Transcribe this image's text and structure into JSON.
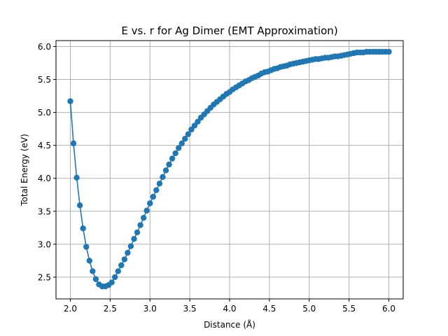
{
  "chart_data": {
    "type": "line",
    "title": "E vs. r for Ag Dimer (EMT Approximation)",
    "xlabel": "Distance (Å)",
    "ylabel": "Total Energy (eV)",
    "xlim": [
      1.82,
      6.18
    ],
    "ylim": [
      2.17,
      6.09
    ],
    "xticks": [
      "2.0",
      "2.5",
      "3.0",
      "3.5",
      "4.0",
      "4.5",
      "5.0",
      "5.5",
      "6.0"
    ],
    "yticks": [
      "2.5",
      "3.0",
      "3.5",
      "4.0",
      "4.5",
      "5.0",
      "5.5",
      "6.0"
    ],
    "grid": true,
    "color": "#1f77b4",
    "marker": "circle",
    "series": [
      {
        "x": [
          2.0,
          2.04,
          2.08,
          2.12,
          2.16,
          2.2,
          2.24,
          2.28,
          2.32,
          2.36,
          2.4,
          2.44,
          2.48,
          2.52,
          2.56,
          2.6,
          2.64,
          2.68,
          2.72,
          2.76,
          2.8,
          2.84,
          2.88,
          2.92,
          2.96,
          3.0,
          3.04,
          3.08,
          3.12,
          3.16,
          3.2,
          3.24,
          3.28,
          3.32,
          3.36,
          3.4,
          3.44,
          3.48,
          3.52,
          3.56,
          3.6,
          3.64,
          3.68,
          3.72,
          3.76,
          3.8,
          3.84,
          3.88,
          3.92,
          3.96,
          4.0,
          4.04,
          4.08,
          4.12,
          4.16,
          4.2,
          4.24,
          4.28,
          4.32,
          4.36,
          4.4,
          4.44,
          4.48,
          4.52,
          4.56,
          4.6,
          4.64,
          4.68,
          4.72,
          4.76,
          4.8,
          4.84,
          4.88,
          4.92,
          4.96,
          5.0,
          5.04,
          5.08,
          5.12,
          5.16,
          5.2,
          5.24,
          5.28,
          5.32,
          5.36,
          5.4,
          5.44,
          5.48,
          5.52,
          5.56,
          5.6,
          5.64,
          5.68,
          5.72,
          5.76,
          5.8,
          5.84,
          5.88,
          5.92,
          5.96,
          6.0
        ],
        "values": [
          5.17,
          4.53,
          4.01,
          3.59,
          3.24,
          2.96,
          2.75,
          2.59,
          2.47,
          2.39,
          2.36,
          2.36,
          2.38,
          2.42,
          2.5,
          2.59,
          2.68,
          2.77,
          2.87,
          2.97,
          3.08,
          3.18,
          3.29,
          3.4,
          3.51,
          3.62,
          3.72,
          3.82,
          3.92,
          4.02,
          4.12,
          4.21,
          4.3,
          4.38,
          4.46,
          4.53,
          4.6,
          4.67,
          4.74,
          4.8,
          4.86,
          4.92,
          4.97,
          5.02,
          5.07,
          5.12,
          5.16,
          5.2,
          5.24,
          5.28,
          5.31,
          5.35,
          5.38,
          5.41,
          5.44,
          5.47,
          5.49,
          5.52,
          5.54,
          5.56,
          5.59,
          5.61,
          5.62,
          5.64,
          5.66,
          5.67,
          5.69,
          5.7,
          5.71,
          5.73,
          5.74,
          5.75,
          5.76,
          5.77,
          5.78,
          5.79,
          5.8,
          5.81,
          5.81,
          5.82,
          5.83,
          5.83,
          5.84,
          5.85,
          5.85,
          5.86,
          5.87,
          5.88,
          5.89,
          5.9,
          5.91,
          5.91,
          5.91,
          5.92,
          5.92,
          5.92,
          5.92,
          5.92,
          5.92,
          5.92,
          5.92
        ]
      }
    ]
  }
}
